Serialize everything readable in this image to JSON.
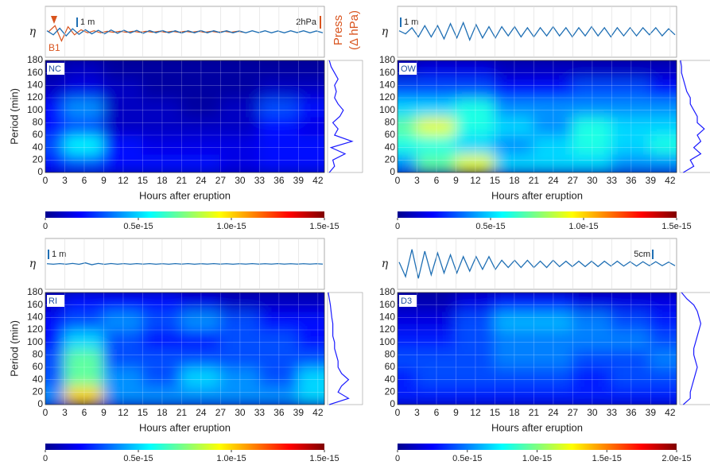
{
  "chart_data": [
    {
      "type": "heatmap",
      "label": "NC",
      "x_label": "Hours after eruption",
      "y_label": "Period (min)",
      "x": [
        0,
        6,
        12,
        18,
        24,
        30,
        36,
        42
      ],
      "y": [
        15,
        45,
        75,
        105,
        135,
        165
      ],
      "values": [
        [
          2e-16,
          3e-16,
          2e-16,
          2e-16,
          2e-16,
          1.5e-16,
          2e-16,
          2e-16
        ],
        [
          3e-16,
          5.5e-16,
          2e-16,
          1.5e-16,
          1.5e-16,
          1.5e-16,
          2e-16,
          2e-16
        ],
        [
          2e-16,
          3e-16,
          1e-16,
          1e-16,
          1e-16,
          1e-16,
          2e-16,
          1.5e-16
        ],
        [
          2e-16,
          4e-16,
          1e-16,
          1e-16,
          5e-17,
          1e-16,
          3e-16,
          2e-16
        ],
        [
          1e-16,
          1.5e-16,
          1e-16,
          5e-17,
          5e-17,
          5e-17,
          1e-16,
          1e-16
        ],
        [
          5e-17,
          1e-16,
          5e-17,
          5e-17,
          5e-17,
          5e-17,
          5e-17,
          5e-17
        ]
      ],
      "xlim": [
        0,
        43
      ],
      "ylim": [
        0,
        180
      ],
      "xticks": [
        0,
        3,
        6,
        9,
        12,
        15,
        18,
        21,
        24,
        27,
        30,
        33,
        36,
        39,
        42
      ],
      "yticks": [
        0,
        20,
        40,
        60,
        80,
        100,
        120,
        140,
        160,
        180
      ],
      "colorbar": {
        "lim": [
          0,
          1.5e-15
        ],
        "ticks": [
          0,
          {
            "value": 5e-16,
            "label": "0.5e-15"
          },
          {
            "value": 1e-15,
            "label": "1.0e-15"
          },
          {
            "value": 1.5e-15,
            "label": "1.5e-15"
          }
        ]
      },
      "trace": {
        "y_label": "η",
        "scale_label": "1 m",
        "color": "#1f6fb4",
        "ylim": [
          -2.5,
          2.5
        ],
        "values": [
          0.1,
          -0.3,
          0.35,
          -0.4,
          0.3,
          -0.25,
          0.2,
          -0.2,
          0.15,
          -0.2,
          0.18,
          -0.15,
          0.15,
          -0.12,
          0.14,
          -0.15,
          0.12,
          -0.1,
          0.12,
          -0.1,
          0.1,
          -0.12,
          0.1,
          -0.1,
          0.12,
          -0.1,
          0.1,
          -0.08,
          0.1,
          -0.1,
          0.08,
          -0.1,
          0.1,
          -0.08,
          0.1,
          -0.1,
          0.08,
          -0.1,
          0.1,
          -0.08,
          0.1,
          -0.1,
          0.08,
          -0.1
        ]
      },
      "pressure": {
        "label": "2hPa",
        "axis_label": [
          "Press",
          "(Δ hPa)"
        ],
        "annotation": "B1",
        "color": "#d9541e",
        "ylim": [
          -2.5,
          2.5
        ],
        "values": [
          0,
          0.6,
          -0.9,
          0.5,
          -0.3,
          0.2,
          -0.1,
          0.1,
          -0.1,
          0.05,
          -0.05,
          0.05,
          -0.05,
          0.05,
          -0.05,
          0.05,
          -0.05,
          0.05,
          -0.05,
          0.05,
          -0.05,
          0.05,
          -0.05,
          0.05,
          -0.05,
          0.05,
          -0.05,
          0.05,
          -0.05,
          0.05,
          -0.05
        ]
      },
      "profile": {
        "period": [
          0,
          10,
          20,
          30,
          40,
          50,
          60,
          70,
          80,
          90,
          100,
          110,
          120,
          130,
          140,
          150,
          160,
          170,
          180
        ],
        "power": [
          0.05,
          0.2,
          0.15,
          0.5,
          0.1,
          0.7,
          0.2,
          0.3,
          0.15,
          0.35,
          0.45,
          0.3,
          0.2,
          0.25,
          0.2,
          0.3,
          0.2,
          0.1,
          0.05
        ],
        "xlim": [
          0,
          1
        ]
      }
    },
    {
      "type": "heatmap",
      "label": "OW",
      "x_label": "Hours after eruption",
      "y_label": "Period (min)",
      "x": [
        0,
        6,
        12,
        18,
        24,
        30,
        36,
        42
      ],
      "y": [
        15,
        45,
        75,
        105,
        135,
        165
      ],
      "values": [
        [
          4e-16,
          7e-16,
          9e-16,
          5e-16,
          5e-16,
          5e-16,
          4e-16,
          4e-16
        ],
        [
          6e-16,
          6e-16,
          5e-16,
          4e-16,
          5e-16,
          6e-16,
          5e-16,
          6e-16
        ],
        [
          7e-16,
          9e-16,
          6e-16,
          5e-16,
          4e-16,
          6e-16,
          5e-16,
          5e-16
        ],
        [
          5e-16,
          5e-16,
          6e-16,
          4e-16,
          4e-16,
          4e-16,
          4e-16,
          4e-16
        ],
        [
          3e-16,
          3e-16,
          3e-16,
          2e-16,
          2e-16,
          3e-16,
          3e-16,
          2e-16
        ],
        [
          1e-16,
          1.5e-16,
          1.5e-16,
          1e-16,
          1e-16,
          1e-16,
          1e-16,
          1e-16
        ]
      ],
      "xlim": [
        0,
        43
      ],
      "ylim": [
        0,
        180
      ],
      "xticks": [
        0,
        3,
        6,
        9,
        12,
        15,
        18,
        21,
        24,
        27,
        30,
        33,
        36,
        39,
        42
      ],
      "yticks": [
        0,
        20,
        40,
        60,
        80,
        100,
        120,
        140,
        160,
        180
      ],
      "colorbar": {
        "lim": [
          0,
          1.5e-15
        ],
        "ticks": [
          0,
          {
            "value": 5e-16,
            "label": "0.5e-15"
          },
          {
            "value": 1e-15,
            "label": "1.0e-15"
          },
          {
            "value": 1.5e-15,
            "label": "1.5e-15"
          }
        ]
      },
      "trace": {
        "y_label": "η",
        "scale_label": "1 m",
        "color": "#1f6fb4",
        "ylim": [
          -2.5,
          2.5
        ],
        "values": [
          0.1,
          -0.2,
          0.4,
          -0.5,
          0.6,
          -0.5,
          0.6,
          -0.7,
          0.8,
          -0.6,
          0.9,
          -0.8,
          0.7,
          -0.6,
          0.5,
          -0.6,
          0.5,
          -0.4,
          0.5,
          -0.5,
          0.4,
          -0.5,
          0.4,
          -0.4,
          0.5,
          -0.4,
          0.4,
          -0.5,
          0.4,
          -0.4,
          0.5,
          -0.4,
          0.4,
          -0.5,
          0.4,
          -0.4,
          0.4,
          -0.4,
          0.4,
          -0.3,
          0.4,
          -0.4,
          0.3,
          -0.3
        ]
      },
      "profile": {
        "period": [
          0,
          10,
          20,
          30,
          40,
          50,
          60,
          70,
          80,
          90,
          100,
          110,
          120,
          130,
          140,
          150,
          160,
          170,
          180
        ],
        "power": [
          0.1,
          0.4,
          0.3,
          0.6,
          0.4,
          0.6,
          0.5,
          0.7,
          0.5,
          0.5,
          0.4,
          0.3,
          0.3,
          0.2,
          0.15,
          0.1,
          0.05,
          0.05,
          0.02
        ],
        "xlim": [
          0,
          1
        ]
      }
    },
    {
      "type": "heatmap",
      "label": "RI",
      "x_label": "Hours after eruption",
      "y_label": "Period (min)",
      "x": [
        0,
        6,
        12,
        18,
        24,
        30,
        36,
        42
      ],
      "y": [
        15,
        45,
        75,
        105,
        135,
        165
      ],
      "values": [
        [
          4e-16,
          1e-15,
          4e-16,
          4e-16,
          4e-16,
          4e-16,
          4e-16,
          5e-16
        ],
        [
          3e-16,
          7e-16,
          4e-16,
          3e-16,
          5e-16,
          4e-16,
          3e-16,
          5e-16
        ],
        [
          3e-16,
          7e-16,
          3e-16,
          3e-16,
          3e-16,
          3e-16,
          3e-16,
          3e-16
        ],
        [
          2e-16,
          5e-16,
          3e-16,
          2e-16,
          2e-16,
          3e-16,
          3e-16,
          2e-16
        ],
        [
          2e-16,
          3e-16,
          4e-16,
          3e-16,
          4e-16,
          3e-16,
          2e-16,
          2e-16
        ],
        [
          1e-16,
          2e-16,
          2e-16,
          2e-16,
          1.5e-16,
          1e-16,
          1e-16,
          1e-16
        ]
      ],
      "xlim": [
        0,
        43
      ],
      "ylim": [
        0,
        180
      ],
      "xticks": [
        0,
        3,
        6,
        9,
        12,
        15,
        18,
        21,
        24,
        27,
        30,
        33,
        36,
        39,
        42
      ],
      "yticks": [
        0,
        20,
        40,
        60,
        80,
        100,
        120,
        140,
        160,
        180
      ],
      "colorbar": {
        "lim": [
          0,
          1.5e-15
        ],
        "ticks": [
          0,
          {
            "value": 5e-16,
            "label": "0.5e-15"
          },
          {
            "value": 1e-15,
            "label": "1.0e-15"
          },
          {
            "value": 1.5e-15,
            "label": "1.5e-15"
          }
        ]
      },
      "trace": {
        "y_label": "η",
        "scale_label": "1 m",
        "color": "#1f6fb4",
        "ylim": [
          -2.5,
          2.5
        ],
        "values": [
          0.02,
          -0.03,
          0.03,
          -0.03,
          0.05,
          -0.04,
          0.1,
          -0.08,
          0.05,
          -0.04,
          0.04,
          -0.03,
          0.03,
          -0.03,
          0.03,
          -0.02,
          0.03,
          -0.03,
          0.02,
          -0.03,
          0.03,
          -0.02,
          0.03,
          -0.03,
          0.02,
          -0.02,
          0.03,
          -0.02,
          0.02,
          -0.03,
          0.02,
          -0.02,
          0.03,
          -0.02,
          0.02,
          -0.02,
          0.03,
          -0.02,
          0.02,
          -0.02,
          0.02,
          -0.02,
          0.02,
          -0.02
        ]
      },
      "profile": {
        "period": [
          0,
          10,
          20,
          30,
          40,
          50,
          60,
          70,
          80,
          90,
          100,
          110,
          120,
          130,
          140,
          150,
          160,
          170,
          180
        ],
        "power": [
          0.05,
          0.6,
          0.3,
          0.4,
          0.6,
          0.4,
          0.3,
          0.3,
          0.25,
          0.2,
          0.2,
          0.15,
          0.15,
          0.15,
          0.12,
          0.1,
          0.08,
          0.05,
          0.02
        ],
        "xlim": [
          0,
          1
        ]
      }
    },
    {
      "type": "heatmap",
      "label": "D3",
      "x_label": "Hours after eruption",
      "y_label": "Period (min)",
      "x": [
        0,
        6,
        12,
        18,
        24,
        30,
        36,
        42
      ],
      "y": [
        15,
        45,
        75,
        105,
        135,
        165
      ],
      "values": [
        [
          3e-16,
          3e-16,
          3e-16,
          3e-16,
          3e-16,
          3e-16,
          3e-16,
          3e-16
        ],
        [
          3e-16,
          4e-16,
          4e-16,
          4e-16,
          4e-16,
          3e-16,
          4e-16,
          4e-16
        ],
        [
          4e-16,
          4e-16,
          4e-16,
          5e-16,
          5e-16,
          4e-16,
          4e-16,
          5e-16
        ],
        [
          3e-16,
          3e-16,
          4e-16,
          5e-16,
          5e-16,
          5e-16,
          5e-16,
          4e-16
        ],
        [
          2e-16,
          2e-16,
          4e-16,
          6e-16,
          6e-16,
          5e-16,
          4e-16,
          3e-16
        ],
        [
          1e-16,
          1e-16,
          2e-16,
          3e-16,
          3e-16,
          2e-16,
          2e-16,
          2e-16
        ]
      ],
      "xlim": [
        0,
        43
      ],
      "ylim": [
        0,
        180
      ],
      "xticks": [
        0,
        3,
        6,
        9,
        12,
        15,
        18,
        21,
        24,
        27,
        30,
        33,
        36,
        39,
        42
      ],
      "yticks": [
        0,
        20,
        40,
        60,
        80,
        100,
        120,
        140,
        160,
        180
      ],
      "colorbar": {
        "lim": [
          0,
          2e-15
        ],
        "ticks": [
          0,
          {
            "value": 5e-16,
            "label": "0.5e-15"
          },
          {
            "value": 1e-15,
            "label": "1.0e-15"
          },
          {
            "value": 1.5e-15,
            "label": "1.5e-15"
          },
          {
            "value": 2e-15,
            "label": "2.0e-15"
          }
        ]
      },
      "trace": {
        "y_label": "η",
        "scale_label": "5cm",
        "color": "#1f6fb4",
        "ylim": [
          -14,
          14
        ],
        "values": [
          1,
          -7,
          8,
          -8,
          7,
          -6,
          6,
          -5,
          5,
          -5,
          4,
          -4,
          4,
          -3,
          4,
          -3,
          2,
          -2,
          2,
          -2,
          2,
          -2,
          1.5,
          -2,
          2,
          -1.5,
          1.5,
          -1.5,
          1.5,
          -1.5,
          1.5,
          -1.5,
          1.5,
          -1.2,
          1.5,
          -1.2,
          1.2,
          -1.2,
          1.2,
          -1,
          1.2,
          -1,
          1,
          -1
        ]
      },
      "profile": {
        "period": [
          0,
          10,
          20,
          30,
          40,
          50,
          60,
          70,
          80,
          90,
          100,
          110,
          120,
          130,
          140,
          150,
          160,
          170,
          180
        ],
        "power": [
          0.1,
          0.3,
          0.3,
          0.35,
          0.4,
          0.45,
          0.5,
          0.45,
          0.4,
          0.4,
          0.45,
          0.5,
          0.55,
          0.6,
          0.55,
          0.5,
          0.4,
          0.2,
          0.05
        ],
        "xlim": [
          0,
          1
        ]
      }
    }
  ]
}
